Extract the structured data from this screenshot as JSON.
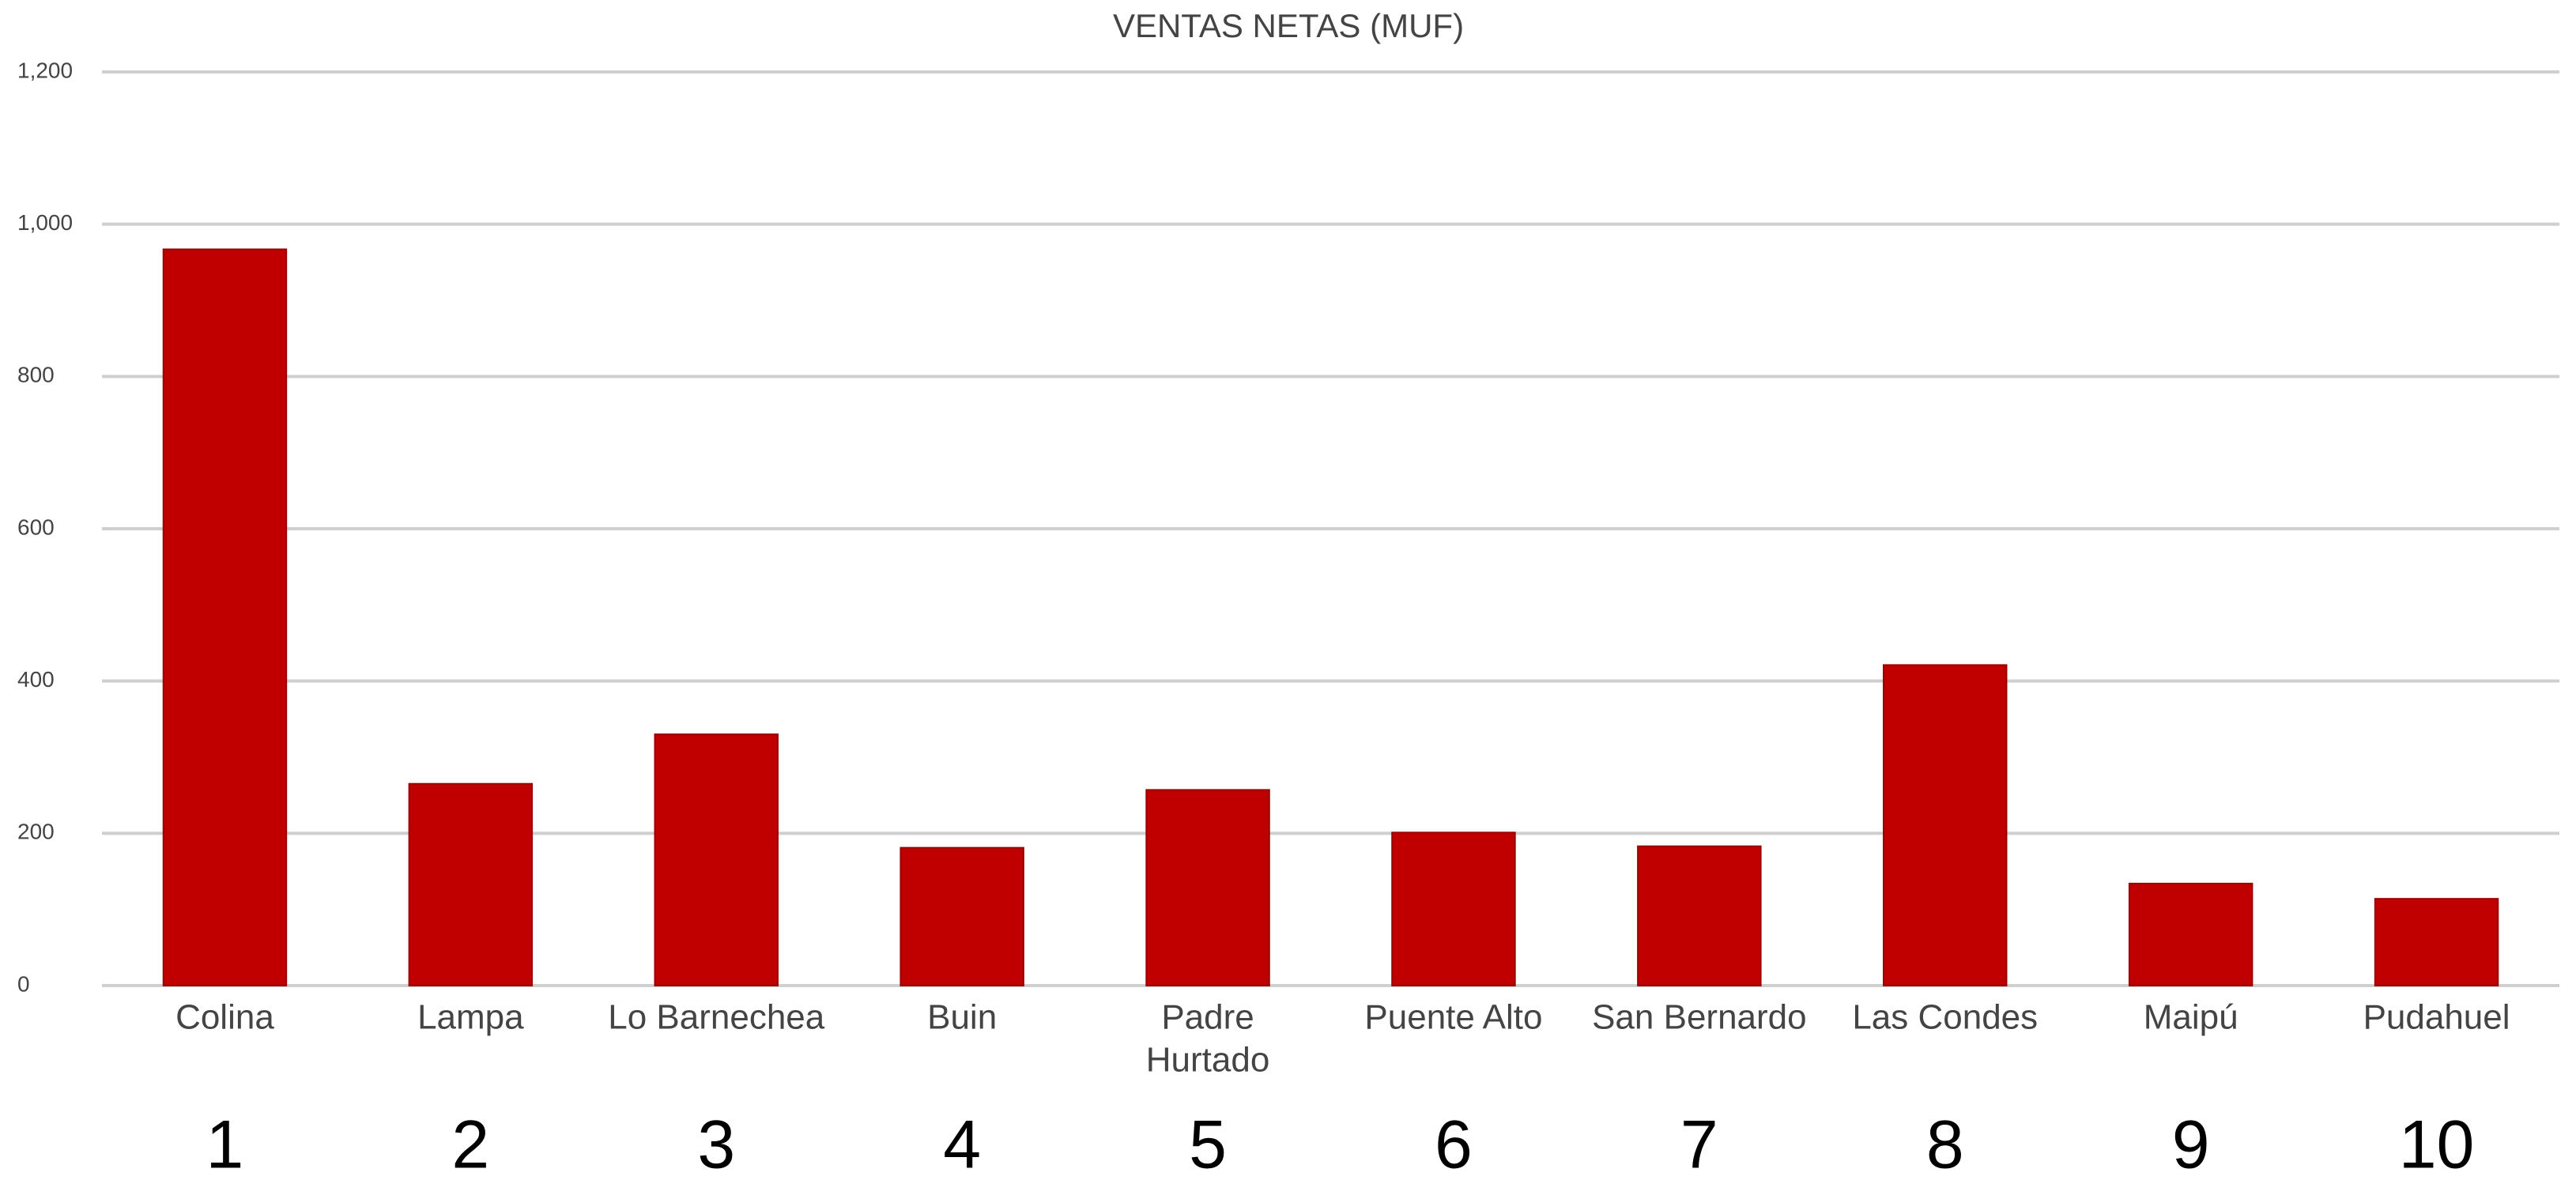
{
  "chart_data": {
    "type": "bar",
    "title": "VENTAS NETAS  (MUF)",
    "categories": [
      "Colina",
      "Lampa",
      "Lo Barnechea",
      "Buin",
      [
        "Padre",
        "Hurtado"
      ],
      "Puente Alto",
      "San Bernardo",
      "Las Condes",
      "Maipú",
      "Pudahuel"
    ],
    "ranks": [
      1,
      2,
      3,
      4,
      5,
      6,
      7,
      8,
      9,
      10
    ],
    "values": [
      967,
      265,
      330,
      181,
      257,
      201,
      183,
      421,
      134,
      114
    ],
    "color": "#c00000",
    "ylim": [
      0,
      1200
    ],
    "yticks": [
      0,
      200,
      400,
      600,
      800,
      {
        "value": 1000,
        "label": "1,000"
      },
      {
        "value": 1200,
        "label": "1,200"
      }
    ],
    "grid": true
  }
}
